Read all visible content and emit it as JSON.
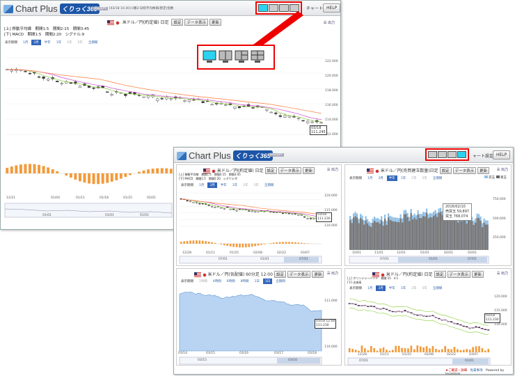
{
  "app": {
    "name": "Chart Plus",
    "badge": "くりっく365"
  },
  "header": {
    "rate_tag": "USD/JPY",
    "rate_text": "[03/18 10:30] 0番2:日経平均株価(暫定)指数",
    "chart_settings": "チャート設定",
    "help": "HELP"
  },
  "callout_mid": {
    "layouts": [
      "single",
      "two",
      "three",
      "four"
    ]
  },
  "main": {
    "title": "米ドル／円(約定値) 日足",
    "btn_settings": "設定",
    "btn_data": "データ表示",
    "btn_update": "更新",
    "menu": "出力",
    "legend_top": "[上] 移動平均線　期間1:5　期間2:15　期間3:45",
    "legend_bottom": "[下] MACD　期間1:5　期間2:20　シグナル:9",
    "periods": [
      "表示期間",
      "1月",
      "3月",
      "半年",
      "1年",
      "2年",
      "5年",
      "全期間"
    ],
    "yticks": [
      "122.000",
      "120.000",
      "118.000",
      "116.000",
      "114.000",
      "112.000"
    ],
    "last_date": "03/18",
    "last_price": "111.245",
    "xticks": [
      "12/21",
      "01/04",
      "01/11",
      "01/18",
      "01/25",
      "02/01"
    ],
    "nav_ticks": [
      "01/01",
      "01/01",
      "01/01"
    ]
  },
  "second": {
    "header_partial": "ャート設定",
    "help": "HELP",
    "chart1": {
      "title": "米ドル／円(約定値) 日足",
      "legend_top": "[上] 移動平均線　期間1:5　期間2:15　期間3:45",
      "legend_bottom": "[下] MACD　期間1:5　期間2:20　シグナル:9",
      "periods": [
        "表示期間",
        "1月",
        "3月",
        "半年",
        "1年",
        "2年",
        "5年",
        "全期間"
      ],
      "yticks": [
        "120.000",
        "115.000",
        "110.000"
      ],
      "last_date": "03/18",
      "last_price": "111.230",
      "xticks": [
        "12/28",
        "01/11",
        "01/25",
        "02/08",
        "02/22",
        "03/07"
      ],
      "nav": [
        "07/01",
        "01/01",
        "07/01"
      ]
    },
    "chart2": {
      "title": "米ドル／円(売買建玉数量)日足",
      "periods": [
        "表示期間",
        "1月",
        "3月",
        "半年",
        "1年",
        "2年",
        "5年",
        "全期間"
      ],
      "legend": [
        "売玉",
        "買玉"
      ],
      "tooltip": [
        "2016/02/10",
        "売買玉 59,897",
        "買玉 768,074"
      ],
      "yticks": [
        "750,000",
        "500,000",
        "250,000"
      ],
      "xticks": [
        "10/01",
        "11/01",
        "12/01",
        "01/01",
        "02/01",
        "03/01"
      ],
      "nav": [
        "07/01",
        "01/01",
        "07/01"
      ]
    },
    "chart3": {
      "title": "米ドル／円(気配値) 60分足 12:00",
      "periods": [
        "表示期間",
        "1時間",
        "4時間",
        "6時間",
        "8時間",
        "1日",
        "3日",
        "全期間"
      ],
      "yticks": [
        "111.000",
        "110.000"
      ],
      "last_date": "03/18 12:00",
      "last_price": "111.230",
      "xticks": [
        "03/14",
        "03/15",
        "03/16",
        "03/17",
        "03/18"
      ],
      "nav": [
        "03/15",
        "03/16"
      ]
    },
    "chart4": {
      "title": "米ドル／円(約定値) 日足",
      "legend_top": "[上] ボリンジャーバンド　期間:15　σ:1",
      "legend_bottom": "[下] 出来高",
      "periods": [
        "表示期間",
        "1月",
        "3月",
        "半年",
        "1年",
        "2年",
        "5年",
        "全期間"
      ],
      "yticks": [
        "120.000",
        "115.000",
        "110.000"
      ],
      "last_date": "03/18",
      "last_price": "111.230",
      "xticks": [
        "12/28",
        "01/11",
        "01/25",
        "02/08",
        "02/22",
        "03/07"
      ],
      "nav": [
        "07/01",
        "01/01"
      ]
    },
    "footer_left": "★ご確認・詳細",
    "footer_mid": "免責事項",
    "footer_right": "Powered by Invastock"
  },
  "colors": {
    "accent": "#e00000",
    "selected_layout": "#2bd3f0",
    "brand": "#1d56a8"
  }
}
